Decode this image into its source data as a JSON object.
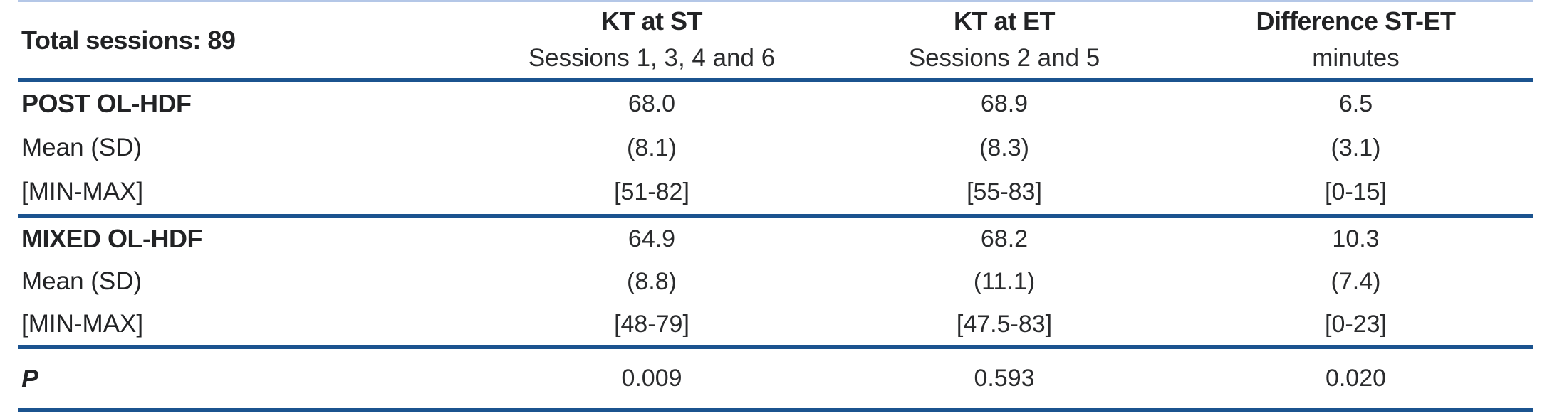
{
  "table": {
    "corner_label": "Total sessions: 89",
    "columns": [
      {
        "title": "KT at ST",
        "subtitle": "Sessions 1, 3, 4 and 6"
      },
      {
        "title": "KT at ET",
        "subtitle": "Sessions 2 and 5"
      },
      {
        "title": "Difference ST-ET",
        "subtitle": "minutes"
      }
    ],
    "groups": [
      {
        "name": "POST OL-HDF",
        "rows": [
          {
            "label": "POST OL-HDF",
            "values": [
              "68.0",
              "68.9",
              "6.5"
            ]
          },
          {
            "label": "Mean (SD)",
            "values": [
              "(8.1)",
              "(8.3)",
              "(3.1)"
            ]
          },
          {
            "label": "[MIN-MAX]",
            "values": [
              "[51-82]",
              "[55-83]",
              "[0-15]"
            ]
          }
        ]
      },
      {
        "name": "MIXED OL-HDF",
        "rows": [
          {
            "label": "MIXED OL-HDF",
            "values": [
              "64.9",
              "68.2",
              "10.3"
            ]
          },
          {
            "label": "Mean (SD)",
            "values": [
              "(8.8)",
              "(11.1)",
              "(7.4)"
            ]
          },
          {
            "label": "[MIN-MAX]",
            "values": [
              "[48-79]",
              "[47.5-83]",
              "[0-23]"
            ]
          }
        ]
      }
    ],
    "p_row": {
      "label": "P",
      "values": [
        "0.009",
        "0.593",
        "0.020"
      ]
    }
  },
  "colors": {
    "rule": "#1b538f",
    "top_hairline": "#b4c7e7",
    "text": "#222325"
  }
}
